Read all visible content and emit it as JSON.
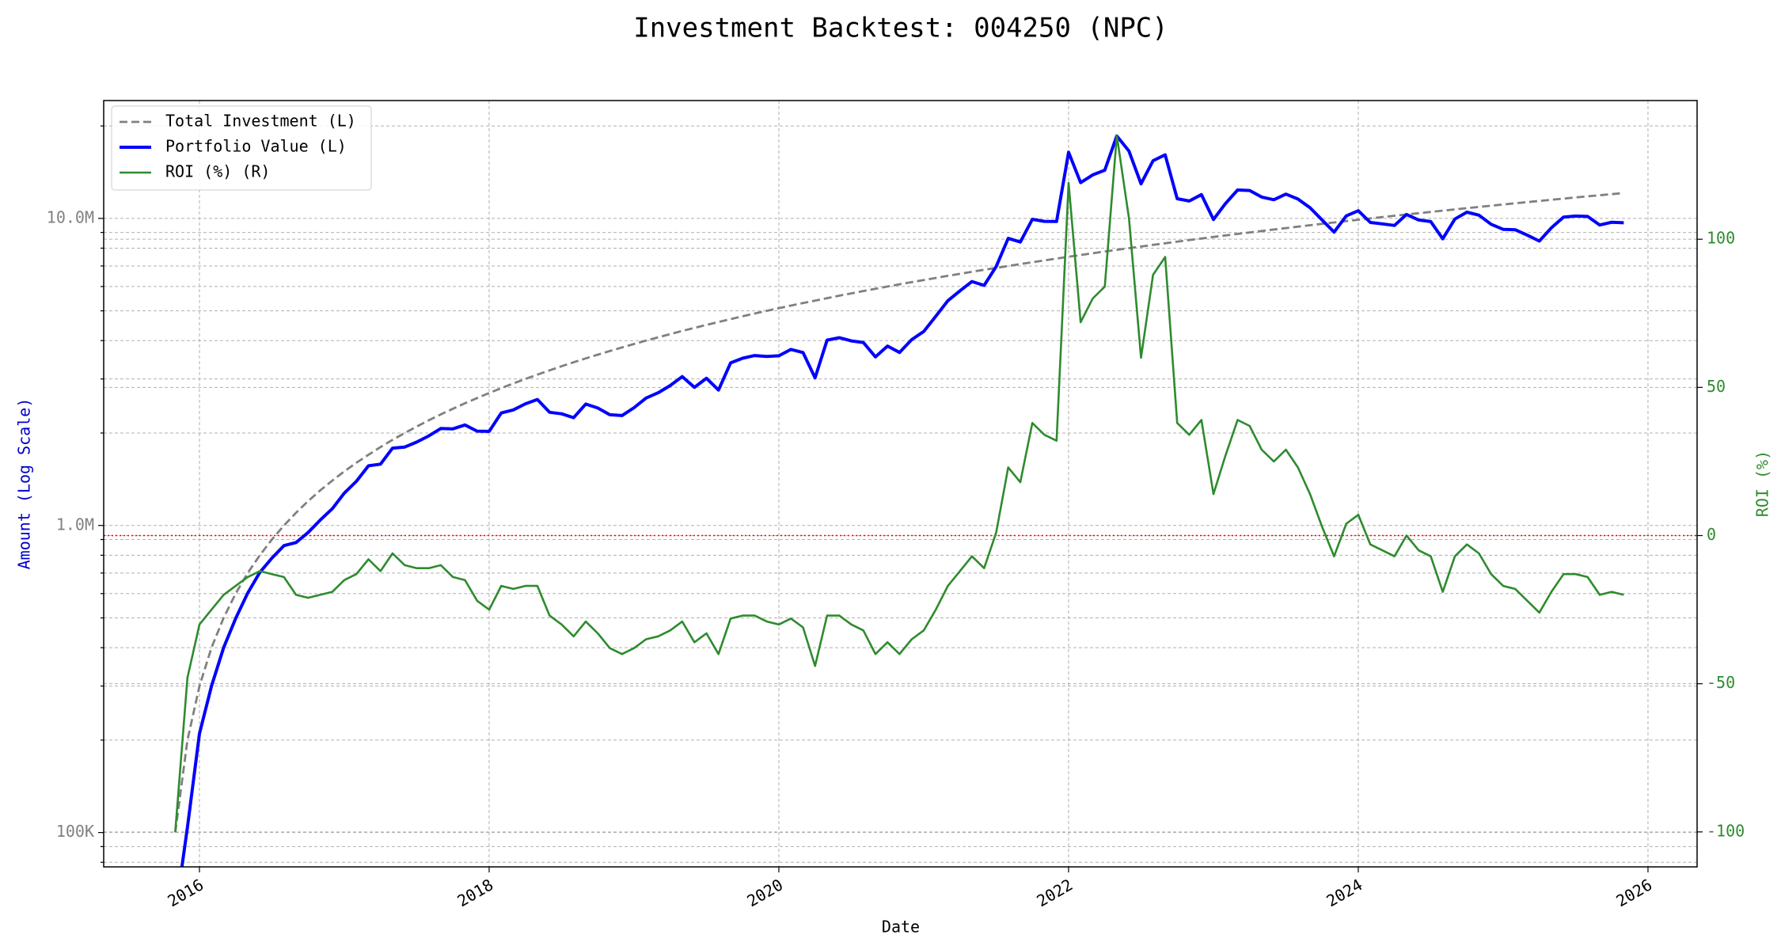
{
  "chart_data": {
    "type": "line",
    "title": "Investment Backtest: 004250 (NPC)",
    "xlabel": "Date",
    "ylabel": "Amount (Log Scale)",
    "y2label": "ROI (%)",
    "x": [
      2015.833,
      2015.917,
      2016.0,
      2016.083,
      2016.167,
      2016.25,
      2016.333,
      2016.417,
      2016.5,
      2016.583,
      2016.667,
      2016.75,
      2016.833,
      2016.917,
      2017.0,
      2017.083,
      2017.167,
      2017.25,
      2017.333,
      2017.417,
      2017.5,
      2017.583,
      2017.667,
      2017.75,
      2017.833,
      2017.917,
      2018.0,
      2018.083,
      2018.167,
      2018.25,
      2018.333,
      2018.417,
      2018.5,
      2018.583,
      2018.667,
      2018.75,
      2018.833,
      2018.917,
      2019.0,
      2019.083,
      2019.167,
      2019.25,
      2019.333,
      2019.417,
      2019.5,
      2019.583,
      2019.667,
      2019.75,
      2019.833,
      2019.917,
      2020.0,
      2020.083,
      2020.167,
      2020.25,
      2020.333,
      2020.417,
      2020.5,
      2020.583,
      2020.667,
      2020.75,
      2020.833,
      2020.917,
      2021.0,
      2021.083,
      2021.167,
      2021.25,
      2021.333,
      2021.417,
      2021.5,
      2021.583,
      2021.667,
      2021.75,
      2021.833,
      2021.917,
      2022.0,
      2022.083,
      2022.167,
      2022.25,
      2022.333,
      2022.417,
      2022.5,
      2022.583,
      2022.667,
      2022.75,
      2022.833,
      2022.917,
      2023.0,
      2023.083,
      2023.167,
      2023.25,
      2023.333,
      2023.417,
      2023.5,
      2023.583,
      2023.667,
      2023.75,
      2023.833,
      2023.917,
      2024.0,
      2024.083,
      2024.167,
      2024.25,
      2024.333,
      2024.417,
      2024.5,
      2024.583,
      2024.667,
      2024.75,
      2024.833,
      2024.917,
      2025.0,
      2025.083,
      2025.167,
      2025.25,
      2025.333,
      2025.417,
      2025.5,
      2025.583,
      2025.667,
      2025.75,
      2025.833
    ],
    "xlim": [
      2015.339,
      2026.339
    ],
    "xticks": [
      2016,
      2018,
      2020,
      2022,
      2024,
      2026
    ],
    "yscale": "log",
    "ylim": [
      77300,
      24200000
    ],
    "yticks": [
      {
        "value": 100000,
        "label": "100K"
      },
      {
        "value": 1000000,
        "label": "1.0M"
      },
      {
        "value": 10000000,
        "label": "10.0M"
      }
    ],
    "yticks_minor": [
      80000,
      90000,
      200000,
      300000,
      400000,
      500000,
      600000,
      700000,
      800000,
      900000,
      2000000,
      3000000,
      4000000,
      5000000,
      6000000,
      7000000,
      8000000,
      9000000,
      20000000
    ],
    "y2lim": [
      -111.8,
      146.8
    ],
    "y2ticks": [
      -100,
      -50,
      0,
      50,
      100
    ],
    "grid": true,
    "legend": "upper left",
    "hline": {
      "axis": "y2",
      "value": 0,
      "color": "red",
      "style": "dotted"
    },
    "series": [
      {
        "name": "Total Investment (L)",
        "color": "gray",
        "style": "dashed",
        "values": [
          100000,
          200000,
          300000,
          400000,
          500000,
          600000,
          700000,
          800000,
          900000,
          1000000,
          1100000,
          1200000,
          1300000,
          1400000,
          1500000,
          1600000,
          1700000,
          1800000,
          1900000,
          2000000,
          2100000,
          2200000,
          2300000,
          2400000,
          2500000,
          2600000,
          2700000,
          2800000,
          2900000,
          3000000,
          3100000,
          3200000,
          3300000,
          3400000,
          3500000,
          3600000,
          3700000,
          3800000,
          3900000,
          4000000,
          4100000,
          4200000,
          4300000,
          4400000,
          4500000,
          4600000,
          4700000,
          4800000,
          4900000,
          5000000,
          5100000,
          5200000,
          5300000,
          5400000,
          5500000,
          5600000,
          5700000,
          5800000,
          5900000,
          6000000,
          6100000,
          6200000,
          6300000,
          6400000,
          6500000,
          6600000,
          6700000,
          6800000,
          6900000,
          7000000,
          7100000,
          7200000,
          7300000,
          7400000,
          7500000,
          7600000,
          7700000,
          7800000,
          7900000,
          8000000,
          8100000,
          8200000,
          8300000,
          8400000,
          8500000,
          8600000,
          8700000,
          8800000,
          8900000,
          9000000,
          9100000,
          9200000,
          9300000,
          9400000,
          9500000,
          9600000,
          9700000,
          9800000,
          9900000,
          10000000,
          10100000,
          10200000,
          10300000,
          10400000,
          10500000,
          10600000,
          10700000,
          10800000,
          10900000,
          11000000,
          11100000,
          11200000,
          11300000,
          11400000,
          11500000,
          11600000,
          11700000,
          11800000,
          11900000,
          12000000,
          12100000
        ]
      },
      {
        "name": "Portfolio Value (L)",
        "color": "blue",
        "style": "solid",
        "values": [
          0,
          104000,
          210000,
          300000,
          400000,
          498000,
          602000,
          704000,
          783000,
          860000,
          880000,
          948000,
          1040000,
          1134000,
          1275000,
          1392000,
          1564000,
          1584000,
          1786000,
          1800000,
          1869000,
          1958000,
          2070000,
          2064000,
          2125000,
          2028000,
          2025000,
          2324000,
          2378000,
          2490000,
          2573000,
          2336000,
          2310000,
          2244000,
          2485000,
          2412000,
          2294000,
          2280000,
          2418000,
          2600000,
          2706000,
          2856000,
          3053000,
          2816000,
          3015000,
          2760000,
          3384000,
          3504000,
          3577000,
          3550000,
          3570000,
          3744000,
          3657000,
          3024000,
          4015000,
          4088000,
          3990000,
          3944000,
          3540000,
          3840000,
          3660000,
          4030000,
          4284000,
          4800000,
          5395000,
          5808000,
          6231000,
          6052000,
          6969000,
          8610000,
          8378000,
          9936000,
          9782000,
          9768000,
          16425000,
          13072000,
          13860000,
          14352000,
          18565000,
          16560000,
          12960000,
          15416000,
          16102000,
          11592000,
          11390000,
          11954000,
          9918000,
          11176000,
          12371000,
          12330000,
          11739000,
          11500000,
          11997000,
          11562000,
          10830000,
          9888000,
          9021000,
          10192000,
          10593000,
          9700000,
          9595000,
          9486000,
          10300000,
          9880000,
          9765000,
          8586000,
          9951000,
          10476000,
          10246000,
          9570000,
          9213000,
          9184000,
          8814000,
          8436000,
          9315000,
          10092000,
          10179000,
          10148000,
          9520000,
          9720000,
          9680000
        ]
      },
      {
        "name": "ROI (%) (R)",
        "color": "#2e8b2e",
        "style": "solid",
        "axis": "y2",
        "values": [
          -100,
          -48,
          -30,
          -25,
          -20,
          -17,
          -14,
          -12,
          -13,
          -14,
          -20,
          -21,
          -20,
          -19,
          -15,
          -13,
          -8,
          -12,
          -6,
          -10,
          -11,
          -11,
          -10,
          -14,
          -15,
          -22,
          -25,
          -17,
          -18,
          -17,
          -17,
          -27,
          -30,
          -34,
          -29,
          -33,
          -38,
          -40,
          -38,
          -35,
          -34,
          -32,
          -29,
          -36,
          -33,
          -40,
          -28,
          -27,
          -27,
          -29,
          -30,
          -28,
          -31,
          -44,
          -27,
          -27,
          -30,
          -32,
          -40,
          -36,
          -40,
          -35,
          -32,
          -25,
          -17,
          -12,
          -7,
          -11,
          1,
          23,
          18,
          38,
          34,
          32,
          119,
          72,
          80,
          84,
          135,
          107,
          60,
          88,
          94,
          38,
          34,
          39,
          14,
          27,
          39,
          37,
          29,
          25,
          29,
          23,
          14,
          3,
          -7,
          4,
          7,
          -3,
          -5,
          -7,
          0,
          -5,
          -7,
          -19,
          -7,
          -3,
          -6,
          -13,
          -17,
          -18,
          -22,
          -26,
          -19,
          -13,
          -13,
          -14,
          -20,
          -19,
          -20
        ]
      }
    ]
  }
}
